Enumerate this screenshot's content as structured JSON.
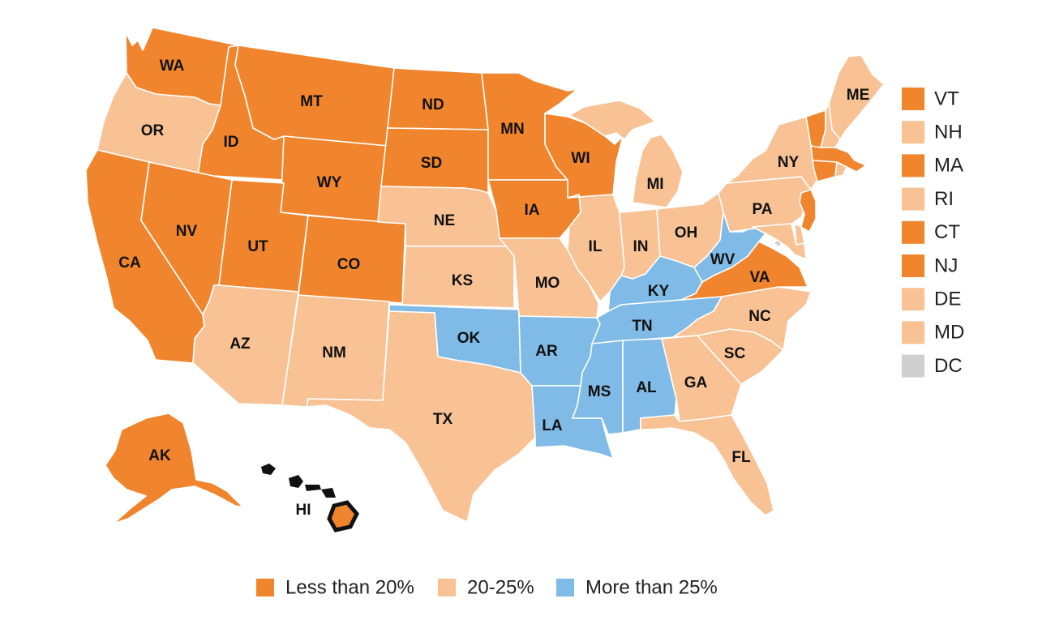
{
  "colors": {
    "low": "#f0852d",
    "mid": "#f8c294",
    "high": "#7fbbe6",
    "na": "#cfcfcf",
    "outline": "#111111"
  },
  "legend": [
    {
      "key": "low",
      "label": "Less than 20%"
    },
    {
      "key": "mid",
      "label": "20-25%"
    },
    {
      "key": "high",
      "label": "More than 25%"
    }
  ],
  "small_states": [
    {
      "abbr": "VT",
      "cat": "low"
    },
    {
      "abbr": "NH",
      "cat": "mid"
    },
    {
      "abbr": "MA",
      "cat": "low"
    },
    {
      "abbr": "RI",
      "cat": "mid"
    },
    {
      "abbr": "CT",
      "cat": "low"
    },
    {
      "abbr": "NJ",
      "cat": "low"
    },
    {
      "abbr": "DE",
      "cat": "mid"
    },
    {
      "abbr": "MD",
      "cat": "mid"
    },
    {
      "abbr": "DC",
      "cat": "na"
    }
  ],
  "states": [
    {
      "abbr": "WA",
      "cat": "low"
    },
    {
      "abbr": "OR",
      "cat": "mid"
    },
    {
      "abbr": "CA",
      "cat": "low"
    },
    {
      "abbr": "ID",
      "cat": "low"
    },
    {
      "abbr": "NV",
      "cat": "low"
    },
    {
      "abbr": "MT",
      "cat": "low"
    },
    {
      "abbr": "WY",
      "cat": "low"
    },
    {
      "abbr": "UT",
      "cat": "low"
    },
    {
      "abbr": "AZ",
      "cat": "mid"
    },
    {
      "abbr": "CO",
      "cat": "low"
    },
    {
      "abbr": "NM",
      "cat": "mid"
    },
    {
      "abbr": "ND",
      "cat": "low"
    },
    {
      "abbr": "SD",
      "cat": "low"
    },
    {
      "abbr": "NE",
      "cat": "mid"
    },
    {
      "abbr": "KS",
      "cat": "mid"
    },
    {
      "abbr": "OK",
      "cat": "high"
    },
    {
      "abbr": "TX",
      "cat": "mid"
    },
    {
      "abbr": "MN",
      "cat": "low"
    },
    {
      "abbr": "IA",
      "cat": "low"
    },
    {
      "abbr": "MO",
      "cat": "mid"
    },
    {
      "abbr": "AR",
      "cat": "high"
    },
    {
      "abbr": "LA",
      "cat": "high"
    },
    {
      "abbr": "WI",
      "cat": "low"
    },
    {
      "abbr": "IL",
      "cat": "mid"
    },
    {
      "abbr": "MI",
      "cat": "mid"
    },
    {
      "abbr": "IN",
      "cat": "mid"
    },
    {
      "abbr": "OH",
      "cat": "mid"
    },
    {
      "abbr": "KY",
      "cat": "high"
    },
    {
      "abbr": "TN",
      "cat": "high"
    },
    {
      "abbr": "MS",
      "cat": "high"
    },
    {
      "abbr": "AL",
      "cat": "high"
    },
    {
      "abbr": "GA",
      "cat": "mid"
    },
    {
      "abbr": "FL",
      "cat": "mid"
    },
    {
      "abbr": "SC",
      "cat": "mid"
    },
    {
      "abbr": "NC",
      "cat": "mid"
    },
    {
      "abbr": "VA",
      "cat": "low"
    },
    {
      "abbr": "WV",
      "cat": "high"
    },
    {
      "abbr": "PA",
      "cat": "mid"
    },
    {
      "abbr": "NY",
      "cat": "mid"
    },
    {
      "abbr": "ME",
      "cat": "mid"
    },
    {
      "abbr": "AK",
      "cat": "low"
    },
    {
      "abbr": "HI",
      "cat": "low"
    }
  ]
}
